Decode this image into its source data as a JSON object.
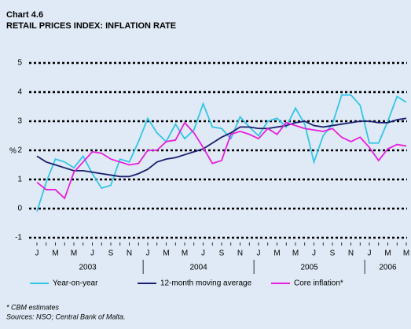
{
  "chart_data": {
    "type": "line",
    "title": "Chart 4.6",
    "subtitle": "RETAIL PRICES INDEX: INFLATION RATE",
    "y_label": "%",
    "categories": [
      "J",
      null,
      "M",
      null,
      "M",
      null,
      "J",
      null,
      "S",
      null,
      "N",
      null,
      "J",
      null,
      "M",
      null,
      "M",
      null,
      "J",
      null,
      "S",
      null,
      "N",
      null,
      "J",
      null,
      "M",
      null,
      "M",
      null,
      "J",
      null,
      "S",
      null,
      "N",
      null,
      "J",
      null,
      "M",
      null,
      "M"
    ],
    "years": [
      "2003",
      "2004",
      "2005",
      "2006"
    ],
    "ylim": [
      -1,
      5
    ],
    "yticks": [
      -1,
      0,
      1,
      2,
      3,
      4,
      5
    ],
    "grid": true,
    "series": [
      {
        "name": "Year-on-year",
        "color": "#33c5e8",
        "values": [
          -0.1,
          0.9,
          1.7,
          1.6,
          1.4,
          1.8,
          1.2,
          0.7,
          0.8,
          1.7,
          1.6,
          2.3,
          3.1,
          2.6,
          2.3,
          2.9,
          2.4,
          2.7,
          3.6,
          2.8,
          2.75,
          2.4,
          3.15,
          2.8,
          2.5,
          3.0,
          3.1,
          2.8,
          3.45,
          2.9,
          1.6,
          2.5,
          2.9,
          3.9,
          3.9,
          3.55,
          2.25,
          2.25,
          3.0,
          3.85,
          3.65
        ]
      },
      {
        "name": "12-month moving average",
        "color": "#1a1f6e",
        "values": [
          1.8,
          1.6,
          1.5,
          1.4,
          1.3,
          1.3,
          1.25,
          1.2,
          1.15,
          1.1,
          1.1,
          1.2,
          1.35,
          1.6,
          1.7,
          1.75,
          1.85,
          1.95,
          2.05,
          2.25,
          2.45,
          2.6,
          2.8,
          2.8,
          2.75,
          2.75,
          2.8,
          2.85,
          2.95,
          3.0,
          2.85,
          2.8,
          2.85,
          2.9,
          2.95,
          3.0,
          3.0,
          2.95,
          2.95,
          3.05,
          3.1
        ]
      },
      {
        "name": "Core inflation*",
        "color": "#e81ee0",
        "values": [
          0.9,
          0.65,
          0.65,
          0.35,
          1.25,
          1.6,
          1.95,
          1.9,
          1.7,
          1.6,
          1.5,
          1.55,
          2.0,
          2.0,
          2.3,
          2.35,
          2.95,
          2.6,
          2.1,
          1.55,
          1.65,
          2.55,
          2.65,
          2.55,
          2.4,
          2.75,
          2.55,
          2.95,
          2.85,
          2.75,
          2.7,
          2.65,
          2.75,
          2.45,
          2.3,
          2.45,
          2.1,
          1.65,
          2.05,
          2.2,
          2.15
        ]
      }
    ],
    "footnotes": [
      "* CBM estimates",
      "Sources: NSO; Central Bank of Malta."
    ]
  }
}
